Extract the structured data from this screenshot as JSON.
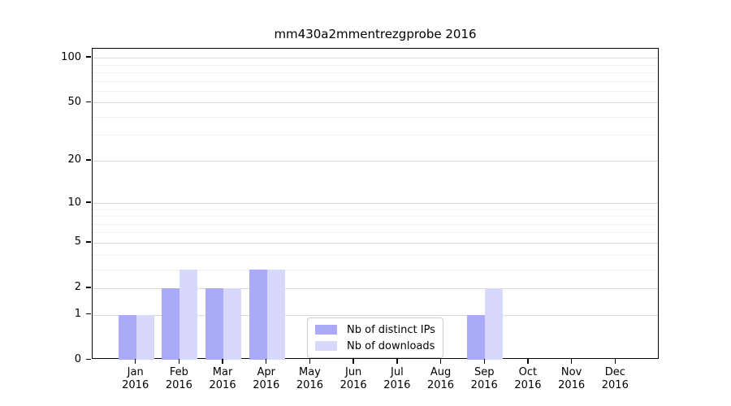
{
  "chart_data": {
    "type": "bar",
    "title": "mm430a2mmentrezgprobe 2016",
    "categories": [
      "Jan",
      "Feb",
      "Mar",
      "Apr",
      "May",
      "Jun",
      "Jul",
      "Aug",
      "Sep",
      "Oct",
      "Nov",
      "Dec"
    ],
    "category_year": "2016",
    "series": [
      {
        "name": "Nb of distinct IPs",
        "color": "#aaaaf9",
        "values": [
          1,
          2,
          2,
          3,
          0,
          0,
          0,
          0,
          1,
          0,
          0,
          0
        ]
      },
      {
        "name": "Nb of downloads",
        "color": "#d8d8fa",
        "values": [
          1,
          3,
          2,
          3,
          0,
          0,
          0,
          0,
          2,
          0,
          0,
          0
        ]
      }
    ],
    "xlabel": "",
    "ylabel": "",
    "yscale": "log10(1+y)",
    "ylim": [
      0,
      115
    ],
    "yticks": [
      0,
      1,
      2,
      5,
      10,
      20,
      50,
      100
    ],
    "minor_gridlines": [
      3,
      4,
      6,
      7,
      8,
      9,
      30,
      40,
      60,
      70,
      80,
      90
    ],
    "grid": "horizontal",
    "legend": {
      "position": "lower-center-left",
      "entries": [
        "Nb of distinct IPs",
        "Nb of downloads"
      ]
    },
    "colors": {
      "axis": "#000000",
      "grid_major": "#d9d9d9",
      "grid_minor": "#f2f2f2",
      "legend_border": "#cccccc",
      "background": "#ffffff",
      "text": "#000000"
    }
  }
}
